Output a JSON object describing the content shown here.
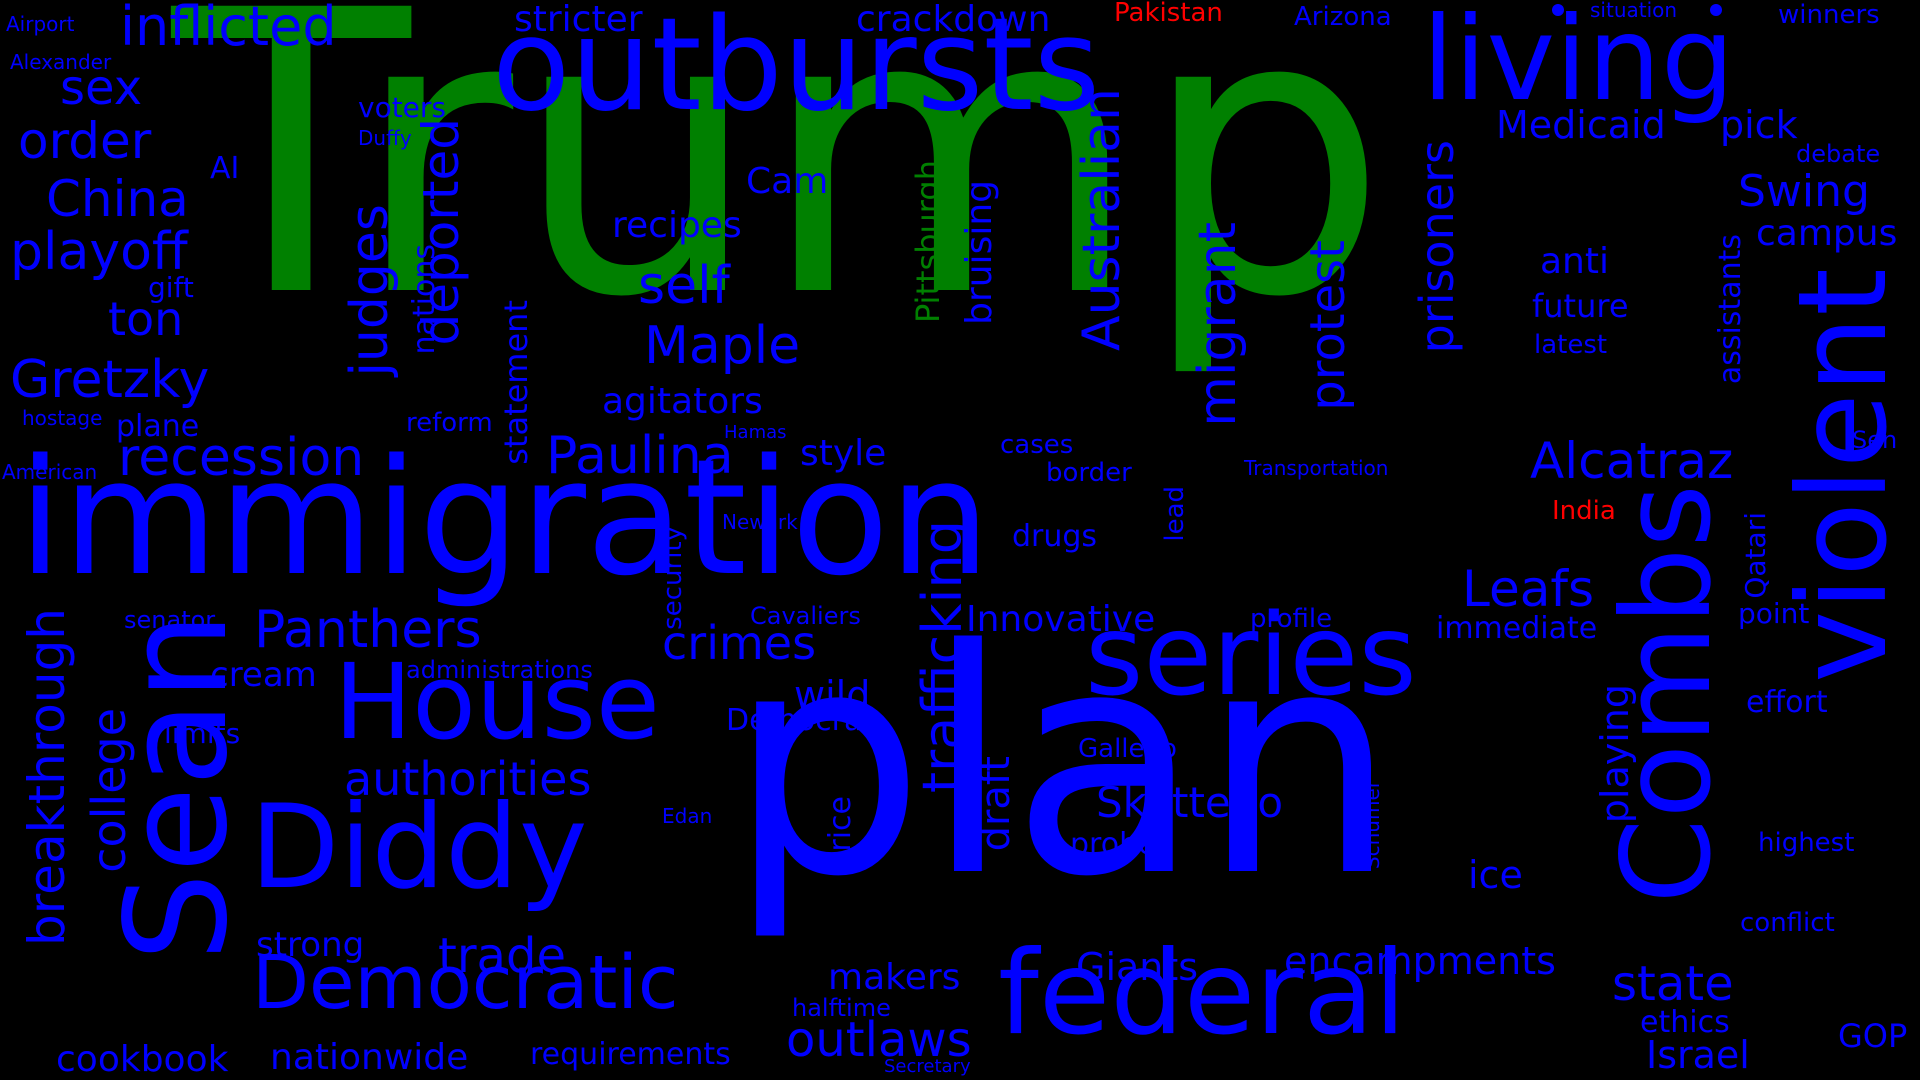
{
  "colors": {
    "background": "#000000",
    "default": "#0000ff",
    "green": "#008000",
    "red": "#ff0000"
  },
  "words": [
    {
      "text": "Trump",
      "color": "green"
    },
    {
      "text": "plan",
      "color": "default"
    },
    {
      "text": "immigration",
      "color": "default"
    },
    {
      "text": "outbursts",
      "color": "default"
    },
    {
      "text": "living",
      "color": "default"
    },
    {
      "text": "Sean",
      "color": "default"
    },
    {
      "text": "Diddy",
      "color": "default"
    },
    {
      "text": "federal",
      "color": "default"
    },
    {
      "text": "violent",
      "color": "default"
    },
    {
      "text": "Combs",
      "color": "default"
    },
    {
      "text": "series",
      "color": "default"
    },
    {
      "text": "House",
      "color": "default"
    },
    {
      "text": "Democratic",
      "color": "default"
    },
    {
      "text": "inflicted",
      "color": "default"
    },
    {
      "text": "sex",
      "color": "default"
    },
    {
      "text": "order",
      "color": "default"
    },
    {
      "text": "China",
      "color": "default"
    },
    {
      "text": "playoff",
      "color": "default"
    },
    {
      "text": "ton",
      "color": "default"
    },
    {
      "text": "Gretzky",
      "color": "default"
    },
    {
      "text": "recession",
      "color": "default"
    },
    {
      "text": "Panthers",
      "color": "default"
    },
    {
      "text": "Paulina",
      "color": "default"
    },
    {
      "text": "Maple",
      "color": "default"
    },
    {
      "text": "self",
      "color": "default"
    },
    {
      "text": "Alcatraz",
      "color": "default"
    },
    {
      "text": "Leafs",
      "color": "default"
    },
    {
      "text": "crimes",
      "color": "default"
    },
    {
      "text": "authorities",
      "color": "default"
    },
    {
      "text": "Skattebo",
      "color": "default"
    },
    {
      "text": "trade",
      "color": "default"
    },
    {
      "text": "outlaws",
      "color": "default"
    },
    {
      "text": "state",
      "color": "default"
    },
    {
      "text": "encampments",
      "color": "default"
    },
    {
      "text": "Giants",
      "color": "default"
    },
    {
      "text": "makers",
      "color": "default"
    },
    {
      "text": "nationwide",
      "color": "default"
    },
    {
      "text": "cookbook",
      "color": "default"
    },
    {
      "text": "requirements",
      "color": "default"
    },
    {
      "text": "Israel",
      "color": "default"
    },
    {
      "text": "Swing",
      "color": "default"
    },
    {
      "text": "Medicaid",
      "color": "default"
    },
    {
      "text": "pick",
      "color": "default"
    },
    {
      "text": "stricter",
      "color": "default"
    },
    {
      "text": "crackdown",
      "color": "default"
    },
    {
      "text": "Pakistan",
      "color": "red"
    },
    {
      "text": "India",
      "color": "red"
    },
    {
      "text": "Arizona",
      "color": "default"
    },
    {
      "text": "winners",
      "color": "default"
    },
    {
      "text": "situation",
      "color": "default"
    },
    {
      "text": "Alexander",
      "color": "default"
    },
    {
      "text": "Airport",
      "color": "default"
    },
    {
      "text": "voters",
      "color": "default"
    },
    {
      "text": "Duffy",
      "color": "default"
    },
    {
      "text": "AI",
      "color": "default"
    },
    {
      "text": "Cam",
      "color": "default"
    },
    {
      "text": "recipes",
      "color": "default"
    },
    {
      "text": "debate",
      "color": "default"
    },
    {
      "text": "campus",
      "color": "default"
    },
    {
      "text": "anti",
      "color": "default"
    },
    {
      "text": "future",
      "color": "default"
    },
    {
      "text": "latest",
      "color": "default"
    },
    {
      "text": "gift",
      "color": "default"
    },
    {
      "text": "hostage",
      "color": "default"
    },
    {
      "text": "plane",
      "color": "default"
    },
    {
      "text": "reform",
      "color": "default"
    },
    {
      "text": "Hamas",
      "color": "default"
    },
    {
      "text": "agitators",
      "color": "default"
    },
    {
      "text": "style",
      "color": "default"
    },
    {
      "text": "cases",
      "color": "default"
    },
    {
      "text": "border",
      "color": "default"
    },
    {
      "text": "Transportation",
      "color": "default"
    },
    {
      "text": "Sen",
      "color": "default"
    },
    {
      "text": "American",
      "color": "default"
    },
    {
      "text": "Newark",
      "color": "default"
    },
    {
      "text": "drugs",
      "color": "default"
    },
    {
      "text": "senator",
      "color": "default"
    },
    {
      "text": "Cavaliers",
      "color": "default"
    },
    {
      "text": "Innovative",
      "color": "default"
    },
    {
      "text": "profile",
      "color": "default"
    },
    {
      "text": "immediate",
      "color": "default"
    },
    {
      "text": "point",
      "color": "default"
    },
    {
      "text": "cream",
      "color": "default"
    },
    {
      "text": "administrations",
      "color": "default"
    },
    {
      "text": "wild",
      "color": "default"
    },
    {
      "text": "Democrat",
      "color": "default"
    },
    {
      "text": "limits",
      "color": "default"
    },
    {
      "text": "Gallego",
      "color": "default"
    },
    {
      "text": "effort",
      "color": "default"
    },
    {
      "text": "Edan",
      "color": "default"
    },
    {
      "text": "probe",
      "color": "default"
    },
    {
      "text": "highest",
      "color": "default"
    },
    {
      "text": "ice",
      "color": "default"
    },
    {
      "text": "strong",
      "color": "default"
    },
    {
      "text": "conflict",
      "color": "default"
    },
    {
      "text": "halftime",
      "color": "default"
    },
    {
      "text": "ethics",
      "color": "default"
    },
    {
      "text": "GOP",
      "color": "default"
    },
    {
      "text": "Secretary",
      "color": "default"
    },
    {
      "text": "judges",
      "color": "default"
    },
    {
      "text": "deported",
      "color": "default"
    },
    {
      "text": "nations",
      "color": "default"
    },
    {
      "text": "statement",
      "color": "default"
    },
    {
      "text": "Pittsburgh",
      "color": "green"
    },
    {
      "text": "bruising",
      "color": "default"
    },
    {
      "text": "Australian",
      "color": "default"
    },
    {
      "text": "migrant",
      "color": "default"
    },
    {
      "text": "protest",
      "color": "default"
    },
    {
      "text": "prisoners",
      "color": "default"
    },
    {
      "text": "assistants",
      "color": "default"
    },
    {
      "text": "Qatari",
      "color": "default"
    },
    {
      "text": "trafficking",
      "color": "default"
    },
    {
      "text": "security",
      "color": "default"
    },
    {
      "text": "lead",
      "color": "default"
    },
    {
      "text": "breakthrough",
      "color": "default"
    },
    {
      "text": "college",
      "color": "default"
    },
    {
      "text": "draft",
      "color": "default"
    },
    {
      "text": "price",
      "color": "default"
    },
    {
      "text": "playing",
      "color": "default"
    },
    {
      "text": "Schumer",
      "color": "default"
    }
  ]
}
